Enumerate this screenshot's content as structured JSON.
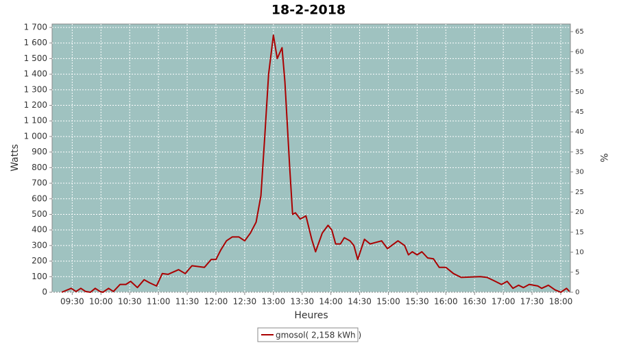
{
  "chart_data": {
    "type": "line",
    "title": "18-2-2018",
    "x_label": "Heures",
    "y_label": "Watts",
    "y2_label": "%",
    "x": [
      "09:19",
      "09:29",
      "09:34",
      "09:39",
      "09:44",
      "09:49",
      "09:54",
      "09:59",
      "10:02",
      "10:08",
      "10:13",
      "10:20",
      "10:26",
      "10:31",
      "10:38",
      "10:45",
      "10:51",
      "10:58",
      "11:04",
      "11:10",
      "11:21",
      "11:28",
      "11:35",
      "11:48",
      "11:55",
      "12:00",
      "12:05",
      "12:11",
      "12:17",
      "12:24",
      "12:30",
      "12:36",
      "12:42",
      "12:47",
      "12:51",
      "12:55",
      "13:00",
      "13:04",
      "13:09",
      "13:12",
      "13:17",
      "13:20",
      "13:23",
      "13:28",
      "13:34",
      "13:40",
      "13:44",
      "13:51",
      "13:57",
      "14:01",
      "14:05",
      "14:10",
      "14:14",
      "14:20",
      "14:24",
      "14:28",
      "14:35",
      "14:41",
      "14:47",
      "14:53",
      "14:59",
      "15:10",
      "15:17",
      "15:21",
      "15:25",
      "15:30",
      "15:35",
      "15:41",
      "15:47",
      "15:53",
      "16:00",
      "16:08",
      "16:16",
      "16:36",
      "16:43",
      "16:50",
      "16:58",
      "17:04",
      "17:10",
      "17:16",
      "17:21",
      "17:27",
      "17:36",
      "17:40",
      "17:47",
      "17:54",
      "18:00",
      "18:06",
      "18:09"
    ],
    "series": [
      {
        "name": "gmosol( 2,158 kWh )",
        "color": "#aa0000",
        "values": [
          0,
          25,
          5,
          25,
          5,
          0,
          25,
          5,
          0,
          25,
          5,
          50,
          50,
          70,
          30,
          80,
          60,
          40,
          120,
          115,
          145,
          120,
          170,
          160,
          210,
          210,
          270,
          330,
          355,
          355,
          330,
          380,
          450,
          620,
          1000,
          1400,
          1650,
          1500,
          1570,
          1350,
          800,
          500,
          510,
          470,
          490,
          340,
          260,
          380,
          430,
          400,
          310,
          310,
          350,
          330,
          300,
          210,
          340,
          310,
          320,
          330,
          280,
          330,
          300,
          240,
          260,
          240,
          260,
          220,
          215,
          160,
          160,
          120,
          95,
          100,
          95,
          75,
          50,
          70,
          25,
          45,
          30,
          50,
          40,
          25,
          45,
          15,
          0,
          25,
          5
        ]
      }
    ],
    "xlim": [
      "09:09",
      "18:10"
    ],
    "xticks": [
      "09:30",
      "10:00",
      "10:30",
      "11:00",
      "11:30",
      "12:00",
      "12:30",
      "13:00",
      "13:30",
      "14:00",
      "14:30",
      "15:00",
      "15:30",
      "16:00",
      "16:30",
      "17:00",
      "17:30",
      "18:00"
    ],
    "ylim": [
      0,
      1722
    ],
    "yticks": [
      0,
      100,
      200,
      300,
      400,
      500,
      600,
      700,
      800,
      900,
      {
        "value": 1000,
        "label": "1 000"
      },
      {
        "value": 1100,
        "label": "1 100"
      },
      {
        "value": 1200,
        "label": "1 200"
      },
      {
        "value": 1300,
        "label": "1 300"
      },
      {
        "value": 1400,
        "label": "1 400"
      },
      {
        "value": 1500,
        "label": "1 500"
      },
      {
        "value": 1600,
        "label": "1 600"
      },
      {
        "value": 1700,
        "label": "1 700"
      }
    ],
    "y2lim": [
      0,
      66.9
    ],
    "y2ticks": [
      0,
      5,
      10,
      15,
      20,
      25,
      30,
      35,
      40,
      45,
      50,
      55,
      60,
      65
    ],
    "grid": true,
    "plot_background": "#9fc2c0"
  }
}
